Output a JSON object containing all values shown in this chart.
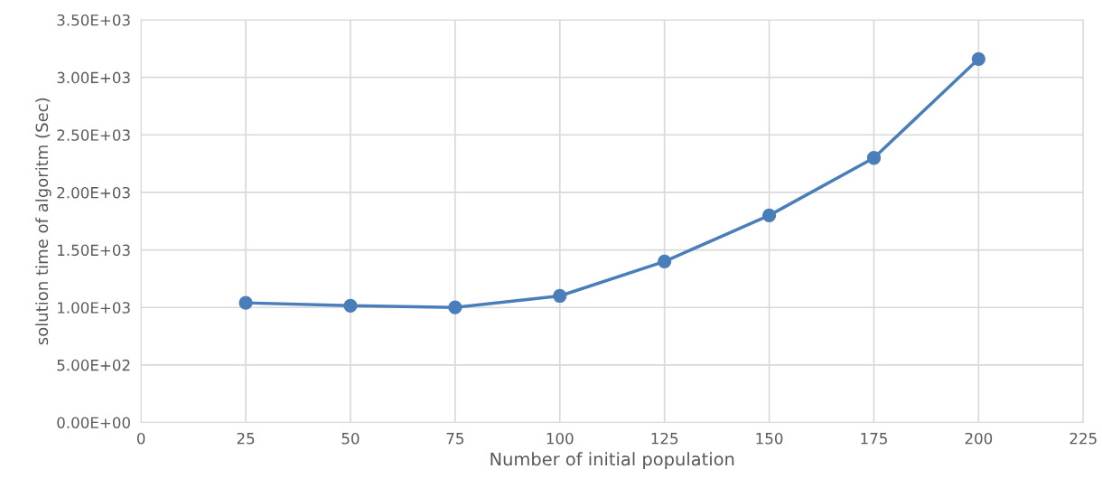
{
  "chart_data": {
    "type": "line",
    "xlabel": "Number of initial population",
    "ylabel": "solution time of algoritm (Sec)",
    "x": [
      25,
      50,
      75,
      100,
      125,
      150,
      175,
      200
    ],
    "series": [
      {
        "color": "#4a7ebb",
        "values": [
          1040,
          1015,
          1000,
          1100,
          1400,
          1800,
          2300,
          3160
        ]
      }
    ],
    "xlim": [
      0,
      225
    ],
    "xticks": [
      0,
      25,
      50,
      75,
      100,
      125,
      150,
      175,
      200,
      225
    ],
    "ylim": [
      0,
      3500
    ],
    "yticks": [
      {
        "value": 0,
        "label": "0.00E+00"
      },
      {
        "value": 500,
        "label": "5.00E+02"
      },
      {
        "value": 1000,
        "label": "1.00E+03"
      },
      {
        "value": 1500,
        "label": "1.50E+03"
      },
      {
        "value": 2000,
        "label": "2.00E+03"
      },
      {
        "value": 2500,
        "label": "2.50E+03"
      },
      {
        "value": 3000,
        "label": "3.00E+03"
      },
      {
        "value": 3500,
        "label": "3.50E+03"
      }
    ],
    "grid": true,
    "marker": "circle",
    "line_style": "solid"
  }
}
